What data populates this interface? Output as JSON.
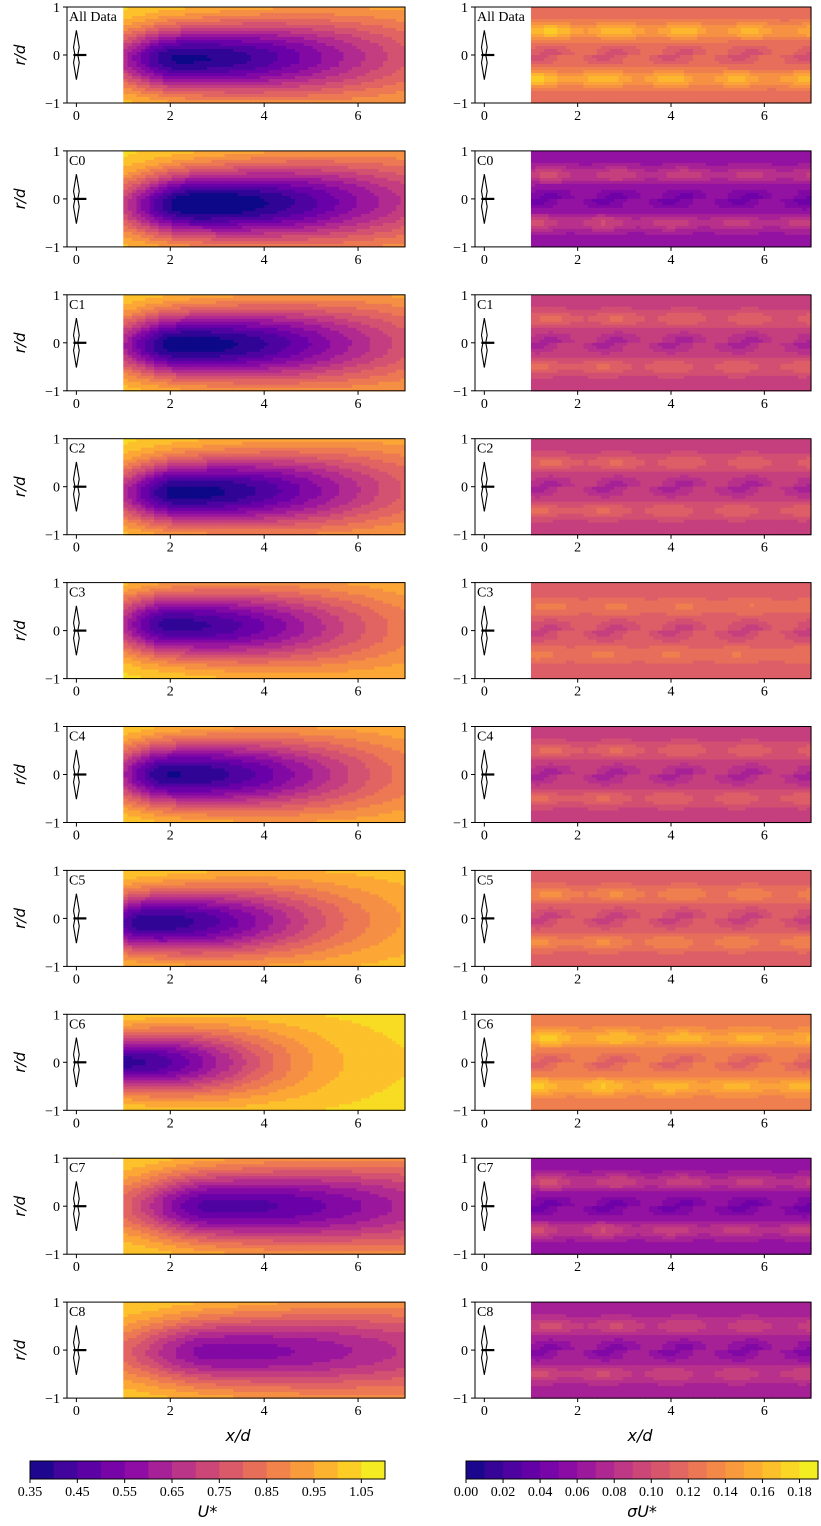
{
  "chart_data": {
    "type": "heatmap",
    "description_layout": "10 rows x 2 columns of contour panels; left column U*, right column sigma_U*",
    "rows": [
      "All Data",
      "C0",
      "C1",
      "C2",
      "C3",
      "C4",
      "C5",
      "C6",
      "C7",
      "C8"
    ],
    "xlim": [
      -0.2,
      7
    ],
    "ylim": [
      -1,
      1
    ],
    "data_start_x": 1,
    "x_ticks": [
      0,
      2,
      4,
      6
    ],
    "y_ticks": [
      -1,
      0,
      1
    ],
    "x_tick_labels": [
      "0",
      "2",
      "4",
      "6"
    ],
    "y_tick_labels": [
      "−1",
      "0",
      "1"
    ],
    "xlabel": "x/d",
    "ylabel": "r/d",
    "panels_left": [
      {
        "label": "All Data",
        "min_U": 0.45,
        "min_x": 2.2,
        "recovery": 0.55,
        "center_r": -0.1
      },
      {
        "label": "C0",
        "min_U": 0.4,
        "min_x": 2.5,
        "recovery": 0.5,
        "center_r": -0.15
      },
      {
        "label": "C1",
        "min_U": 0.42,
        "min_x": 2.2,
        "recovery": 0.55,
        "center_r": -0.05
      },
      {
        "label": "C2",
        "min_U": 0.43,
        "min_x": 2.2,
        "recovery": 0.6,
        "center_r": -0.15
      },
      {
        "label": "C3",
        "min_U": 0.48,
        "min_x": 2.0,
        "recovery": 0.7,
        "center_r": 0.15
      },
      {
        "label": "C4",
        "min_U": 0.45,
        "min_x": 2.0,
        "recovery": 0.7,
        "center_r": 0.0
      },
      {
        "label": "C5",
        "min_U": 0.45,
        "min_x": 1.5,
        "recovery": 0.85,
        "center_r": -0.1
      },
      {
        "label": "C6",
        "min_U": 0.45,
        "min_x": 1.0,
        "recovery": 1.3,
        "center_r": 0.0
      },
      {
        "label": "C7",
        "min_U": 0.55,
        "min_x": 3.0,
        "recovery": 0.35,
        "center_r": 0.0
      },
      {
        "label": "C8",
        "min_U": 0.65,
        "min_x": 3.0,
        "recovery": 0.3,
        "center_r": -0.05
      }
    ],
    "panels_right": [
      {
        "label": "All Data",
        "base": 0.12,
        "peak": 0.17
      },
      {
        "label": "C0",
        "base": 0.06,
        "peak": 0.1
      },
      {
        "label": "C1",
        "base": 0.09,
        "peak": 0.12
      },
      {
        "label": "C2",
        "base": 0.09,
        "peak": 0.12
      },
      {
        "label": "C3",
        "base": 0.11,
        "peak": 0.13
      },
      {
        "label": "C4",
        "base": 0.09,
        "peak": 0.12
      },
      {
        "label": "C5",
        "base": 0.11,
        "peak": 0.14
      },
      {
        "label": "C6",
        "base": 0.13,
        "peak": 0.17
      },
      {
        "label": "C7",
        "base": 0.06,
        "peak": 0.1
      },
      {
        "label": "C8",
        "base": 0.07,
        "peak": 0.1
      }
    ],
    "colorbar_left": {
      "label": "U*",
      "range": [
        0.35,
        1.1
      ],
      "step": 0.05,
      "tick_labels": [
        "0.35",
        "0.45",
        "0.55",
        "0.65",
        "0.75",
        "0.85",
        "0.95",
        "1.05"
      ]
    },
    "colorbar_right": {
      "label": "σU*",
      "range": [
        0.0,
        0.19
      ],
      "step": 0.01,
      "tick_labels": [
        "0.00",
        "0.02",
        "0.04",
        "0.06",
        "0.08",
        "0.10",
        "0.12",
        "0.14",
        "0.16",
        "0.18"
      ]
    },
    "colormap": "plasma"
  }
}
